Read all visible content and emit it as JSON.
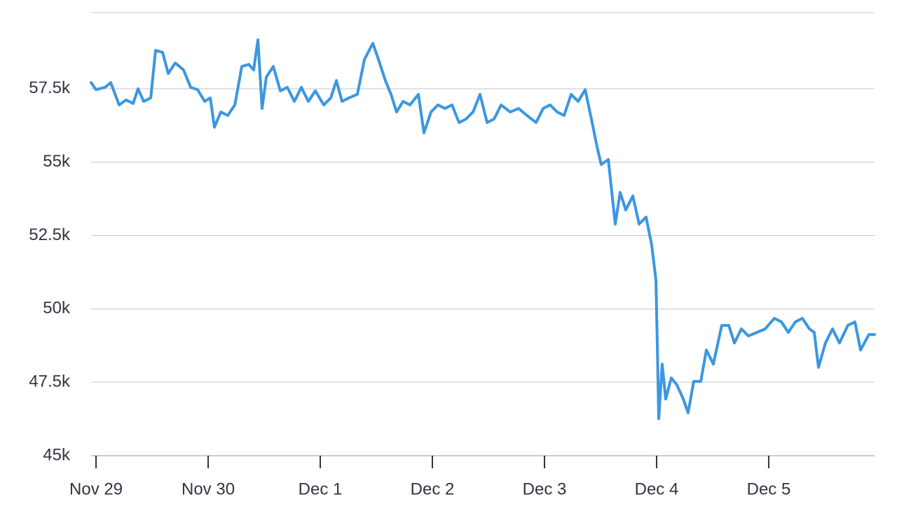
{
  "chart_data": {
    "type": "line",
    "x": [
      -0.044,
      0,
      0.081,
      0.131,
      0.206,
      0.269,
      0.331,
      0.375,
      0.425,
      0.488,
      0.531,
      0.594,
      0.644,
      0.706,
      0.781,
      0.844,
      0.906,
      0.969,
      1.019,
      1.056,
      1.113,
      1.175,
      1.238,
      1.3,
      1.363,
      1.406,
      1.444,
      1.481,
      1.519,
      1.581,
      1.644,
      1.706,
      1.769,
      1.831,
      1.894,
      1.956,
      2.031,
      2.094,
      2.144,
      2.194,
      2.256,
      2.331,
      2.394,
      2.469,
      2.519,
      2.581,
      2.631,
      2.681,
      2.738,
      2.8,
      2.875,
      2.925,
      2.988,
      3.05,
      3.113,
      3.175,
      3.238,
      3.3,
      3.363,
      3.425,
      3.488,
      3.55,
      3.613,
      3.694,
      3.769,
      3.844,
      3.925,
      3.988,
      4.05,
      4.113,
      4.175,
      4.238,
      4.3,
      4.363,
      4.425,
      4.469,
      4.506,
      4.569,
      4.631,
      4.675,
      4.725,
      4.788,
      4.844,
      4.906,
      4.956,
      4.994,
      5.006,
      5.019,
      5.05,
      5.081,
      5.131,
      5.181,
      5.238,
      5.281,
      5.331,
      5.394,
      5.444,
      5.506,
      5.581,
      5.644,
      5.694,
      5.756,
      5.819,
      5.894,
      5.969,
      6.05,
      6.113,
      6.175,
      6.238,
      6.3,
      6.363,
      6.406,
      6.444,
      6.506,
      6.569,
      6.631,
      6.706,
      6.769,
      6.819,
      6.894,
      6.944
    ],
    "series": [
      {
        "color": "#3b97e0",
        "values": [
          57710,
          57470,
          57550,
          57710,
          56950,
          57120,
          57000,
          57500,
          57070,
          57190,
          58810,
          58740,
          58020,
          58380,
          58140,
          57550,
          57470,
          57070,
          57190,
          56190,
          56710,
          56590,
          56950,
          58260,
          58330,
          58140,
          59170,
          56830,
          57900,
          58260,
          57430,
          57550,
          57070,
          57550,
          57070,
          57430,
          56950,
          57190,
          57780,
          57070,
          57190,
          57310,
          58500,
          59050,
          58500,
          57780,
          57310,
          56710,
          57070,
          56950,
          57310,
          56000,
          56710,
          56950,
          56830,
          56950,
          56350,
          56470,
          56710,
          57310,
          56350,
          56470,
          56950,
          56710,
          56830,
          56590,
          56350,
          56830,
          56950,
          56710,
          56590,
          57310,
          57070,
          57470,
          56350,
          55520,
          54920,
          55090,
          52890,
          53970,
          53370,
          53850,
          52890,
          53130,
          52180,
          50990,
          48840,
          46260,
          48120,
          46930,
          47650,
          47410,
          46930,
          46460,
          47530,
          47530,
          48600,
          48120,
          49440,
          49440,
          48840,
          49320,
          49080,
          49200,
          49320,
          49680,
          49560,
          49200,
          49560,
          49680,
          49320,
          49200,
          48010,
          48840,
          49320,
          48840,
          49440,
          49560,
          48600,
          49130,
          49130
        ]
      }
    ],
    "xlim": [
      -0.044,
      6.944
    ],
    "xticks": [
      {
        "value": 0,
        "label": "Nov 29"
      },
      {
        "value": 1,
        "label": "Nov 30"
      },
      {
        "value": 2,
        "label": "Dec 1"
      },
      {
        "value": 3,
        "label": "Dec 2"
      },
      {
        "value": 4,
        "label": "Dec 3"
      },
      {
        "value": 5,
        "label": "Dec 4"
      },
      {
        "value": 6,
        "label": "Dec 5"
      }
    ],
    "ylim": [
      45000,
      60000
    ],
    "yticks": [
      {
        "value": 45000,
        "label": "45k"
      },
      {
        "value": 47500,
        "label": "47.5k"
      },
      {
        "value": 50000,
        "label": "50k"
      },
      {
        "value": 52500,
        "label": "52.5k"
      },
      {
        "value": 55000,
        "label": "55k"
      },
      {
        "value": 57500,
        "label": "57.5k"
      }
    ],
    "grid": true
  }
}
